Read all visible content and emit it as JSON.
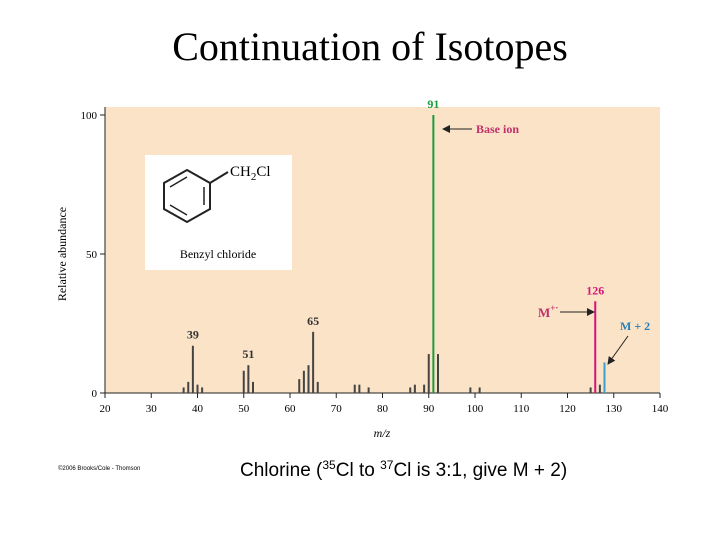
{
  "title": "Continuation of Isotopes",
  "chart_data": {
    "type": "bar",
    "x": [
      37,
      38,
      39,
      40,
      41,
      50,
      51,
      52,
      62,
      63,
      64,
      65,
      66,
      74,
      75,
      77,
      86,
      87,
      89,
      90,
      91,
      92,
      99,
      101,
      125,
      126,
      127,
      128
    ],
    "values": [
      2,
      4,
      17,
      3,
      2,
      8,
      10,
      4,
      5,
      8,
      10,
      22,
      4,
      3,
      3,
      2,
      2,
      3,
      3,
      14,
      100,
      14,
      2,
      2,
      2,
      33,
      3,
      11
    ],
    "colors": [
      "#444",
      "#444",
      "#444",
      "#444",
      "#444",
      "#444",
      "#444",
      "#444",
      "#444",
      "#444",
      "#444",
      "#444",
      "#444",
      "#444",
      "#444",
      "#444",
      "#444",
      "#444",
      "#444",
      "#444",
      "#1a9b3c",
      "#444",
      "#444",
      "#444",
      "#444",
      "#d6127a",
      "#444",
      "#3aa0d0"
    ],
    "peak_labels": [
      91,
      126,
      39,
      65,
      51
    ],
    "xlim": [
      20,
      140
    ],
    "xticks": [
      20,
      30,
      40,
      50,
      60,
      70,
      80,
      90,
      100,
      110,
      120,
      130,
      140
    ],
    "ylim": [
      0,
      100
    ],
    "yticks": [
      0,
      50,
      100
    ],
    "xlabel": "m/z",
    "ylabel": "Relative abundance",
    "annotations": [
      "Base ion",
      "M",
      "+·",
      "M + 2"
    ],
    "inset": {
      "formula": [
        "CH",
        "2",
        "Cl"
      ],
      "label": "Benzyl chloride"
    }
  },
  "caption": [
    "Chlorine (",
    "35",
    "Cl to ",
    "37",
    "Cl is 3:1, give M + 2)"
  ],
  "credit": "©2006 Brooks/Cole - Thomson"
}
